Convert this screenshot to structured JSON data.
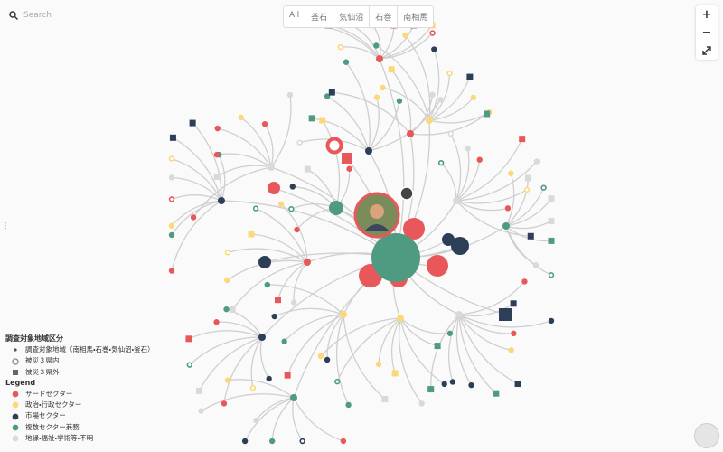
{
  "search": {
    "placeholder": "Search"
  },
  "tabs": [
    "All",
    "釜石",
    "気仙沼",
    "石巻",
    "南相馬"
  ],
  "zoom_controls": [
    "+",
    "−"
  ],
  "legend": {
    "region_title": "調査対象地域区分",
    "regions": [
      "調査対象地域（南相馬・石巻・気仙沼・釜石）",
      "被災３県内",
      "被災３県外"
    ],
    "title": "Legend",
    "sectors": [
      {
        "label": "サードセクター",
        "color": "#e8575a"
      },
      {
        "label": "政治・行政セクター",
        "color": "#fcd879"
      },
      {
        "label": "市場セクター",
        "color": "#2d3e57"
      },
      {
        "label": "複数セクター兼務",
        "color": "#4f9b82"
      },
      {
        "label": "地縁・福祉・学術等・不明",
        "color": "#d9d9d9"
      }
    ]
  }
}
